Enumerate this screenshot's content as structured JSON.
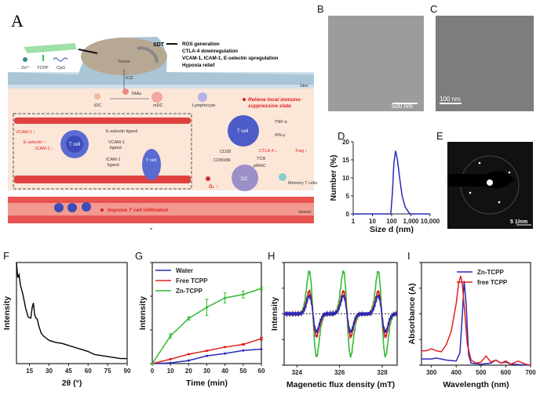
{
  "panel_a": {
    "label": "A",
    "legend": [
      "Zn²⁺",
      "TCPP",
      "CpG"
    ],
    "tumor": "Tumor",
    "sdt": "SDT",
    "effects": [
      "ROS generation",
      "CTLA-4 downregulation",
      "VCAM-1, ICAM-1, E-selectin upregulation",
      "Hypoxia relief"
    ],
    "skin": "Skin",
    "icd": "ICD",
    "idc": "iDC",
    "taas": "TAAs",
    "mdc": "mDC",
    "lymphocyte": "Lymphocyte",
    "relieve_1": "Relieve local immuno-",
    "relieve_2": "suppressive state",
    "vcam": "VCAM-1 ↑",
    "eselectin": "E-selectin ↑",
    "icam": "ICAM-1 ↑",
    "t_cell": "T cell",
    "e_ligand": "E-selectin ligand",
    "vcam_ligand_1": "VCAM-1",
    "vcam_ligand_2": "ligand",
    "icam_ligand_1": "ICAM-1",
    "icam_ligand_2": "ligand",
    "tnf": "TNF-α",
    "ifn": "IFN-γ",
    "cd28": "CD28",
    "cd80": "CD80/86",
    "ctla4": "CTLA-4 ↓",
    "tcr": "TCR",
    "pmhc": "pMHC",
    "treg": "Treg ↓",
    "dc": "DC",
    "o2": "O₂ ↑",
    "memory": "Memory T cells",
    "improve": "Improve T cell infiltration",
    "vessel": "Vessel"
  },
  "panel_b": {
    "label": "B",
    "scale": "500 nm"
  },
  "panel_c": {
    "label": "C",
    "scale": "100 nm"
  },
  "panel_e": {
    "label": "E",
    "scale": "5 1/nm"
  },
  "chart_data": [
    {
      "panel": "D",
      "type": "line",
      "xlabel": "Size d (nm)",
      "ylabel": "Number (%)",
      "xscale": "log",
      "xlim": [
        1,
        10000
      ],
      "ylim": [
        0,
        20
      ],
      "xticks": [
        "1",
        "10",
        "100",
        "1,000",
        "10,000"
      ],
      "yticks": [
        "0",
        "5",
        "10",
        "15",
        "20"
      ],
      "series": [
        {
          "color": "#2a2ab8",
          "x": [
            1,
            90,
            110,
            130,
            160,
            200,
            260,
            350,
            500,
            800,
            1000,
            10000
          ],
          "y": [
            0,
            0,
            6,
            14,
            17.5,
            15,
            10,
            5,
            2,
            0.3,
            0,
            0
          ]
        }
      ]
    },
    {
      "panel": "F",
      "type": "line",
      "xlabel": "2θ (°)",
      "ylabel": "Intensity",
      "xlim": [
        5,
        90
      ],
      "ylim": [
        0,
        1
      ],
      "xticks": [
        "15",
        "30",
        "45",
        "60",
        "75",
        "90"
      ],
      "series": [
        {
          "color": "#000000",
          "x": [
            5,
            6,
            7,
            8,
            10,
            12,
            14,
            16,
            17,
            18,
            19,
            20,
            21,
            22,
            24,
            26,
            28,
            30,
            35,
            40,
            45,
            50,
            55,
            60,
            65,
            70,
            75,
            80,
            85,
            90
          ],
          "y": [
            1,
            0.85,
            0.88,
            0.78,
            0.68,
            0.55,
            0.46,
            0.45,
            0.55,
            0.6,
            0.48,
            0.45,
            0.44,
            0.38,
            0.3,
            0.27,
            0.25,
            0.23,
            0.21,
            0.2,
            0.18,
            0.16,
            0.14,
            0.12,
            0.09,
            0.08,
            0.07,
            0.06,
            0.05,
            0.05
          ]
        }
      ]
    },
    {
      "panel": "G",
      "type": "line",
      "xlabel": "Time (min)",
      "ylabel": "Intensity",
      "xlim": [
        0,
        60
      ],
      "ylim": [
        0,
        3
      ],
      "xticks": [
        "0",
        "10",
        "20",
        "30",
        "40",
        "50",
        "60"
      ],
      "legend": "top-left",
      "series": [
        {
          "name": "Water",
          "color": "#2a2ab8",
          "x": [
            0,
            10,
            20,
            30,
            40,
            50,
            60
          ],
          "y": [
            0,
            0.02,
            0.09,
            0.23,
            0.3,
            0.39,
            0.43
          ]
        },
        {
          "name": "Free TCPP",
          "color": "#e02020",
          "x": [
            0,
            10,
            20,
            30,
            40,
            50,
            60
          ],
          "y": [
            0,
            0.13,
            0.28,
            0.38,
            0.49,
            0.57,
            0.74
          ],
          "err": [
            0,
            0.01,
            0.01,
            0.01,
            0.01,
            0.02,
            0.04
          ]
        },
        {
          "name": "Zn-TCPP",
          "color": "#33bb33",
          "x": [
            0,
            10,
            20,
            30,
            40,
            50,
            60
          ],
          "y": [
            0,
            0.82,
            1.34,
            1.67,
            1.95,
            2.05,
            2.23
          ],
          "err": [
            0,
            0.07,
            0.05,
            0.24,
            0.15,
            0.1,
            0.04
          ]
        }
      ]
    },
    {
      "panel": "H",
      "type": "line",
      "xlabel": "Magenetic flux density (mT)",
      "ylabel": "Intensity",
      "xlim": [
        323.4,
        328.7
      ],
      "ylim": [
        -1,
        1
      ],
      "xticks": [
        "324",
        "326",
        "328"
      ],
      "lines_mT": [
        324.75,
        326.35,
        327.98
      ],
      "series": [
        {
          "color": "#33bb33",
          "amplitude": 0.85
        },
        {
          "color": "#e02020",
          "amplitude": 0.45
        },
        {
          "color": "#2a2ab8",
          "amplitude": 0.36
        }
      ]
    },
    {
      "panel": "I",
      "type": "line",
      "xlabel": "Wavelength  (nm)",
      "ylabel": "Absorbance (A)",
      "xlim": [
        260,
        700
      ],
      "ylim": [
        0,
        1
      ],
      "xticks": [
        "300",
        "400",
        "500",
        "600",
        "700"
      ],
      "legend": "top-right",
      "series": [
        {
          "name": "Zn-TCPP",
          "color": "#2a2ab8",
          "x": [
            260,
            300,
            320,
            360,
            400,
            415,
            425,
            432,
            440,
            450,
            460,
            500,
            540,
            560,
            580,
            600,
            620,
            700
          ],
          "y": [
            0.06,
            0.06,
            0.07,
            0.05,
            0.04,
            0.12,
            0.5,
            0.82,
            0.6,
            0.1,
            0.02,
            0.01,
            0.02,
            0.05,
            0.02,
            0.03,
            0.01,
            0
          ]
        },
        {
          "name": "free TCPP",
          "color": "#e02020",
          "x": [
            260,
            280,
            300,
            320,
            340,
            360,
            380,
            400,
            410,
            418,
            425,
            435,
            445,
            460,
            480,
            500,
            520,
            540,
            560,
            580,
            600,
            620,
            650,
            680,
            700
          ],
          "y": [
            0.14,
            0.14,
            0.16,
            0.14,
            0.13,
            0.2,
            0.33,
            0.6,
            0.8,
            0.87,
            0.78,
            0.5,
            0.2,
            0.05,
            0.02,
            0.03,
            0.09,
            0.03,
            0.05,
            0.02,
            0.04,
            0.01,
            0.04,
            0.01,
            0
          ]
        }
      ]
    }
  ]
}
